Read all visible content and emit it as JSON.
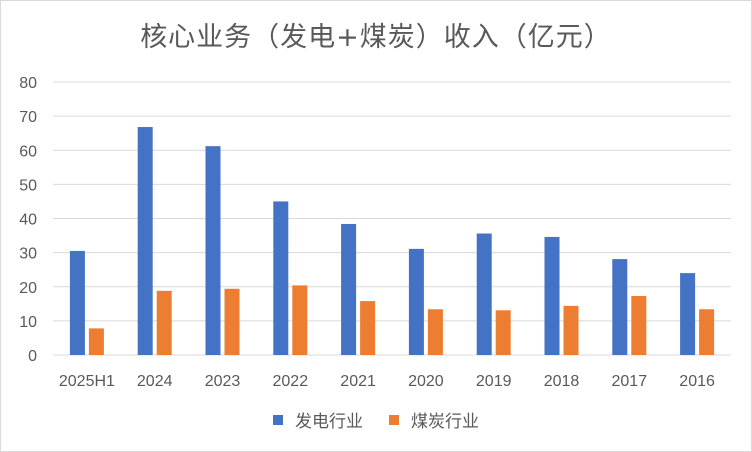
{
  "chart_data": {
    "type": "bar",
    "title": "核心业务（发电+煤炭）收入（亿元）",
    "categories": [
      "2025H1",
      "2024",
      "2023",
      "2022",
      "2021",
      "2020",
      "2019",
      "2018",
      "2017",
      "2016"
    ],
    "series": [
      {
        "name": "发电行业",
        "color": "#4472c4",
        "values": [
          30.5,
          66.8,
          61.2,
          45.0,
          38.4,
          31.1,
          35.6,
          34.6,
          28.1,
          24.0
        ]
      },
      {
        "name": "煤炭行业",
        "color": "#ed7d31",
        "values": [
          7.8,
          18.8,
          19.4,
          20.4,
          15.8,
          13.4,
          13.1,
          14.4,
          17.3,
          13.4
        ]
      }
    ],
    "yticks": [
      0,
      10,
      20,
      30,
      40,
      50,
      60,
      70,
      80
    ],
    "ylim": [
      0,
      80
    ],
    "grid": true,
    "legend": "bottom-center",
    "gridline_color": "#d9d9d9"
  }
}
